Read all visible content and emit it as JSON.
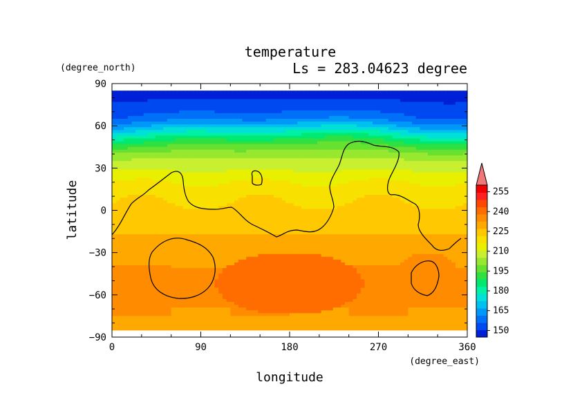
{
  "chart_data": {
    "type": "heatmap",
    "title": "temperature",
    "subtitle": "Ls = 283.04623 degree",
    "xlabel": "longitude",
    "ylabel": "latitude",
    "x_unit": "(degree_east)",
    "y_unit": "(degree_north)",
    "xlim": [
      0,
      360
    ],
    "ylim": [
      -90,
      90
    ],
    "x_ticks": [
      "0",
      "90",
      "180",
      "270",
      "360"
    ],
    "y_ticks": [
      "90",
      "60",
      "30",
      "0",
      "−30",
      "−60",
      "−90"
    ],
    "data_lat_range": [
      -85,
      85
    ],
    "colorbar": {
      "ticks": [
        "255",
        "240",
        "225",
        "210",
        "195",
        "180",
        "165",
        "150"
      ],
      "levels": [
        145,
        150,
        155,
        160,
        165,
        170,
        175,
        180,
        185,
        190,
        195,
        200,
        205,
        210,
        215,
        220,
        225,
        230,
        235,
        240,
        245,
        250,
        255,
        260
      ],
      "colors": [
        "#0020d8",
        "#0048f0",
        "#0070f8",
        "#0098f8",
        "#00c0f0",
        "#00e0d8",
        "#00f0a8",
        "#00e870",
        "#30e040",
        "#68e030",
        "#98e830",
        "#c8f030",
        "#e8f000",
        "#f8e000",
        "#ffc800",
        "#ffa800",
        "#ff8c00",
        "#ff6c00",
        "#ff4800",
        "#ff2020",
        "#f00000"
      ],
      "extend_color": "#f07878"
    },
    "zonal_profile": {
      "latitudes": [
        85,
        75,
        65,
        60,
        55,
        50,
        45,
        40,
        35,
        30,
        25,
        20,
        15,
        10,
        5,
        0,
        -5,
        -10,
        -15,
        -20,
        -25,
        -30,
        -35,
        -40,
        -45,
        -50,
        -55,
        -60,
        -65,
        -70,
        -75,
        -80,
        -85
      ],
      "values": [
        148,
        151,
        158,
        166,
        175,
        184,
        191,
        197,
        201,
        204,
        207,
        210,
        212,
        214,
        215,
        216,
        217,
        218,
        219,
        221,
        222,
        223,
        224,
        225,
        226,
        227,
        227,
        227,
        226,
        225,
        225,
        224,
        224
      ]
    },
    "warm_cores": [
      {
        "lon": 180,
        "lat": -52,
        "value": 233,
        "r_lon": 75,
        "r_lat": 22
      },
      {
        "lon": 110,
        "lat": -45,
        "value": 224,
        "r_lon": 40,
        "r_lat": 18
      },
      {
        "lon": 320,
        "lat": -45,
        "value": 226,
        "r_lon": 30,
        "r_lat": 15
      }
    ]
  }
}
